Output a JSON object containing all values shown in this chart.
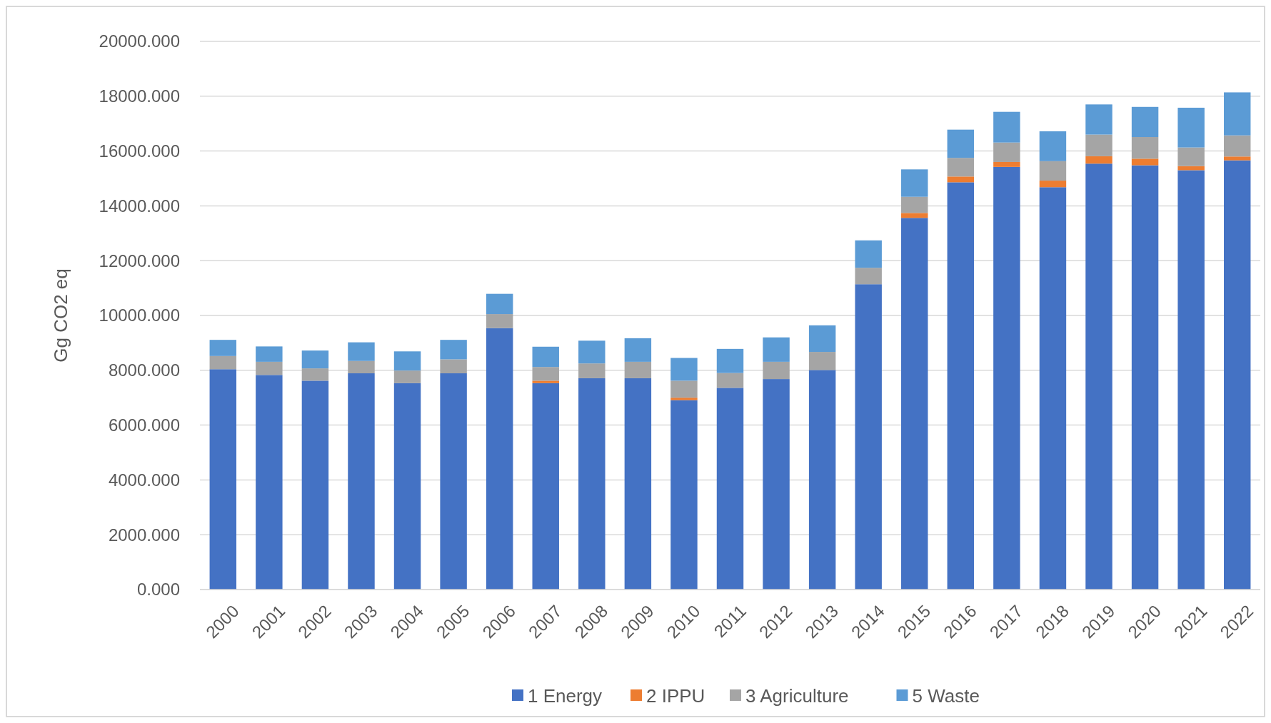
{
  "chart_data": {
    "type": "bar",
    "stacked": true,
    "ylabel": "Gg CO2 eq",
    "grid": "y",
    "legend": "bottom",
    "categories": [
      "2000",
      "2001",
      "2002",
      "2003",
      "2004",
      "2005",
      "2006",
      "2007",
      "2008",
      "2009",
      "2010",
      "2011",
      "2012",
      "2013",
      "2014",
      "2015",
      "2016",
      "2017",
      "2018",
      "2019",
      "2020",
      "2021",
      "2022"
    ],
    "ylim": [
      0,
      20000
    ],
    "yticks": [
      {
        "value": 0,
        "label": "0.000"
      },
      {
        "value": 2000,
        "label": "2000.000"
      },
      {
        "value": 4000,
        "label": "4000.000"
      },
      {
        "value": 6000,
        "label": "6000.000"
      },
      {
        "value": 8000,
        "label": "8000.000"
      },
      {
        "value": 10000,
        "label": "10000.000"
      },
      {
        "value": 12000,
        "label": "12000.000"
      },
      {
        "value": 14000,
        "label": "14000.000"
      },
      {
        "value": 16000,
        "label": "16000.000"
      },
      {
        "value": 18000,
        "label": "18000.000"
      },
      {
        "value": 20000,
        "label": "20000.000"
      }
    ],
    "series": [
      {
        "name": "1 Energy",
        "color": "#4472c4",
        "values": [
          8040,
          7830,
          7620,
          7890,
          7530,
          7890,
          9540,
          7530,
          7710,
          7710,
          6910,
          7360,
          7680,
          8010,
          11140,
          13560,
          14860,
          15420,
          14680,
          15540,
          15480,
          15300,
          15660
        ]
      },
      {
        "name": "2 IPPU",
        "color": "#ed7d31",
        "values": [
          null,
          null,
          null,
          null,
          null,
          null,
          null,
          90,
          null,
          null,
          90,
          null,
          null,
          null,
          null,
          180,
          210,
          180,
          240,
          270,
          240,
          150,
          140
        ]
      },
      {
        "name": "3 Agriculture",
        "color": "#a5a5a5",
        "values": [
          480,
          480,
          450,
          450,
          460,
          510,
          510,
          500,
          540,
          600,
          620,
          540,
          630,
          660,
          600,
          590,
          680,
          710,
          710,
          790,
          790,
          680,
          770
        ]
      },
      {
        "name": "5 Waste",
        "color": "#5b9bd5",
        "values": [
          590,
          560,
          650,
          680,
          700,
          710,
          740,
          740,
          830,
          860,
          830,
          880,
          890,
          970,
          1000,
          1000,
          1030,
          1120,
          1090,
          1100,
          1100,
          1450,
          1570
        ]
      }
    ]
  }
}
